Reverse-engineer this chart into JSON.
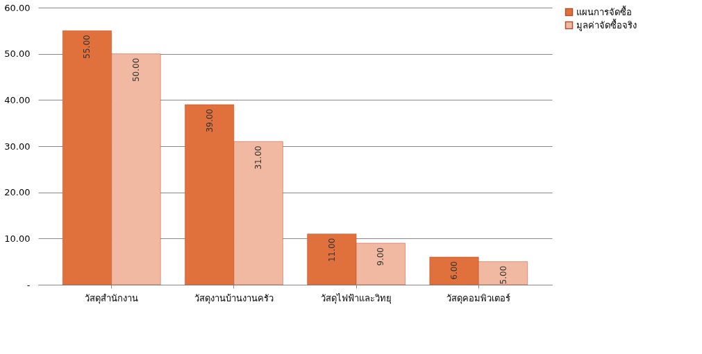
{
  "chart_data": {
    "type": "bar",
    "categories": [
      "วัสดุสำนักงาน",
      "วัสดุงานบ้านงานครัว",
      "วัสดุไฟฟ้าและวิทยุ",
      "วัสดุคอมพิวเตอร์"
    ],
    "series": [
      {
        "name": "แผนการจัดซื้อ",
        "color": "#e0703c",
        "values": [
          55,
          39,
          11,
          6
        ],
        "value_labels": [
          "55.00",
          "39.00",
          "11.00",
          "6.00"
        ]
      },
      {
        "name": "มูลค่าจัดซื้อจริง",
        "color": "#f2b9a2",
        "values": [
          50,
          31,
          9,
          5
        ],
        "value_labels": [
          "50.00",
          "31.00",
          "9.00",
          "5.00"
        ]
      }
    ],
    "ylim": [
      0,
      60
    ],
    "yticks": [
      {
        "value": 0,
        "label": "-"
      },
      {
        "value": 10,
        "label": "10.00"
      },
      {
        "value": 20,
        "label": "20.00"
      },
      {
        "value": 30,
        "label": "30.00"
      },
      {
        "value": 40,
        "label": "40.00"
      },
      {
        "value": 50,
        "label": "50.00"
      },
      {
        "value": 60,
        "label": "60.00"
      }
    ],
    "grid": "y",
    "legend": "right"
  }
}
